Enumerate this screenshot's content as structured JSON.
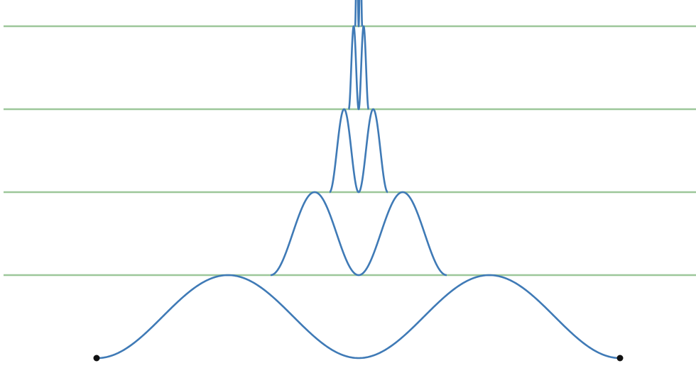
{
  "colors": {
    "background": "#ffffff",
    "baseline": "#9dc79a",
    "curve": "#3f7ab6",
    "endpoint": "#111111"
  },
  "diagram": {
    "baseline_count": 4,
    "level_count": 5,
    "lobes_per_level": 2,
    "endpoint_count": 2
  }
}
